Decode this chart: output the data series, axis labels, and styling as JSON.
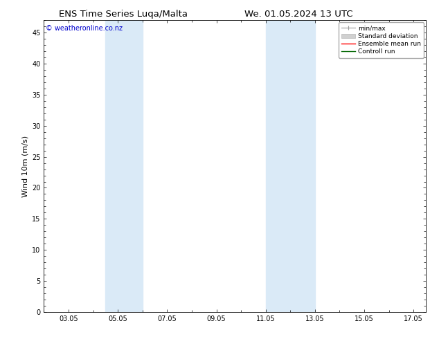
{
  "title_left": "ENS Time Series Luqa/Malta",
  "title_right": "We. 01.05.2024 13 UTC",
  "ylabel": "Wind 10m (m/s)",
  "watermark": "© weatheronline.co.nz",
  "x_tick_labels": [
    "03.05",
    "05.05",
    "07.05",
    "09.05",
    "11.05",
    "13.05",
    "15.05",
    "17.05"
  ],
  "x_tick_positions": [
    3,
    5,
    7,
    9,
    11,
    13,
    15,
    17
  ],
  "xlim": [
    2.0,
    17.5
  ],
  "ylim": [
    0,
    47
  ],
  "yticks": [
    0,
    5,
    10,
    15,
    20,
    25,
    30,
    35,
    40,
    45
  ],
  "shaded_bands": [
    {
      "x_start": 4.5,
      "x_end": 6.0
    },
    {
      "x_start": 11.0,
      "x_end": 13.0
    }
  ],
  "shaded_color": "#daeaf7",
  "legend_entries": [
    {
      "label": "min/max",
      "color": "#aaaaaa",
      "lw": 1.0,
      "style": "minmax"
    },
    {
      "label": "Standard deviation",
      "color": "#cccccc",
      "lw": 5,
      "style": "rect"
    },
    {
      "label": "Ensemble mean run",
      "color": "#ff0000",
      "lw": 1.2,
      "style": "line"
    },
    {
      "label": "Controll run",
      "color": "#008000",
      "lw": 1.2,
      "style": "line"
    }
  ],
  "background_color": "#ffffff",
  "plot_bg_color": "#ffffff",
  "border_color": "#000000",
  "title_fontsize": 9.5,
  "tick_fontsize": 7,
  "ylabel_fontsize": 8,
  "watermark_color": "#0000cc",
  "watermark_fontsize": 7,
  "legend_fontsize": 6.5
}
